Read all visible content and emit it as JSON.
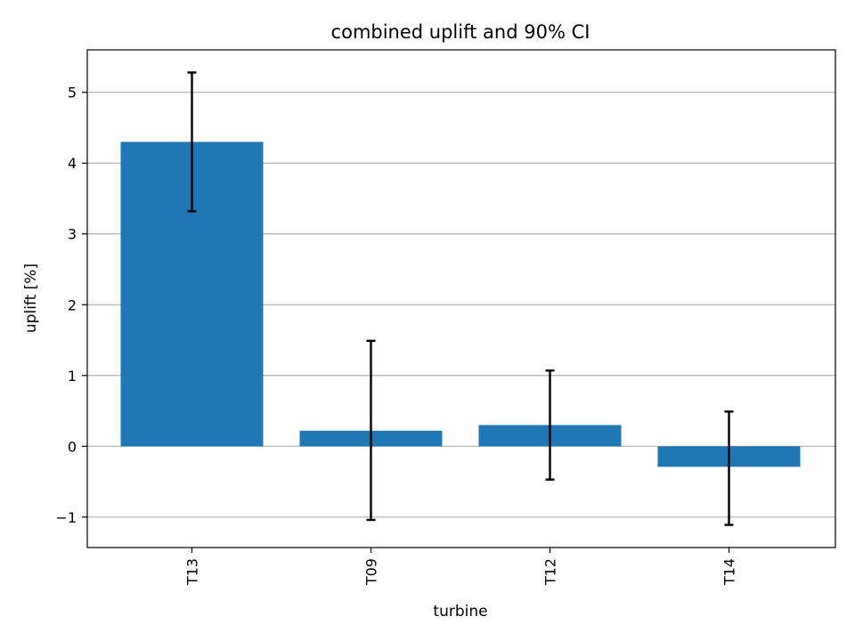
{
  "chart_data": {
    "type": "bar",
    "title": "combined uplift and 90% CI",
    "xlabel": "turbine",
    "ylabel": "uplift [%]",
    "categories": [
      "T13",
      "T09",
      "T12",
      "T14"
    ],
    "values": [
      4.3,
      0.22,
      0.3,
      -0.29
    ],
    "error_low": [
      3.32,
      -1.04,
      -0.47,
      -1.11
    ],
    "error_high": [
      5.28,
      1.49,
      1.07,
      0.49
    ],
    "ylim": [
      -1.43,
      5.6
    ],
    "yticks": [
      -1,
      0,
      1,
      2,
      3,
      4,
      5
    ],
    "ytick_labels": [
      "−1",
      "0",
      "1",
      "2",
      "3",
      "4",
      "5"
    ],
    "grid": "y",
    "bar_color": "#1f77b4",
    "error_color": "#000000",
    "grid_color": "#b0b0b0"
  }
}
